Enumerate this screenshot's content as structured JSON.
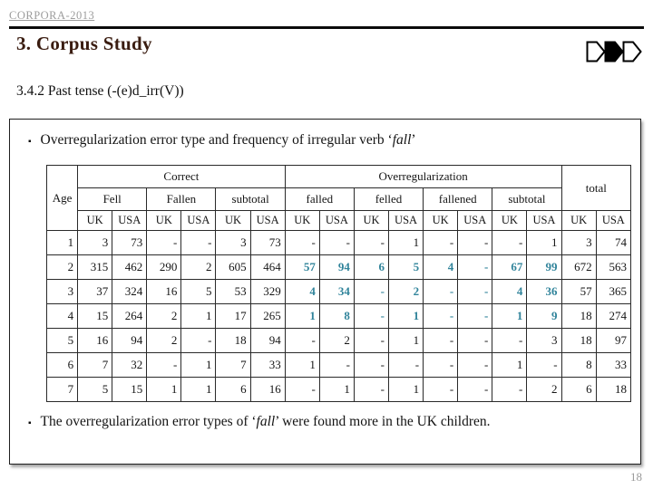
{
  "header": {
    "eyebrow": "CORPORA-2013",
    "title": "3. Corpus Study",
    "subtitle": "3.4.2 Past tense (-(e)d_irr(V))",
    "nav_shapes": [
      {
        "name": "pentagon-outline-icon",
        "fill": "#ffffff"
      },
      {
        "name": "pentagon-filled-icon",
        "fill": "#000000"
      },
      {
        "name": "pentagon-outline-icon",
        "fill": "#ffffff"
      }
    ]
  },
  "bullet_glyph": "▪",
  "bullets": [
    {
      "before": "Overregularization error type and frequency of irregular verb ‘",
      "italic": "fall",
      "after": "’"
    },
    {
      "before": "The overregularization error types of ‘",
      "italic": "fall",
      "after": "’ were found more in the UK children."
    }
  ],
  "table": {
    "age_label": "Age",
    "group_headers": [
      {
        "label": "Correct",
        "span": 6
      },
      {
        "label": "Overregularization",
        "span": 8
      }
    ],
    "total_label": "total",
    "sub_headers": [
      {
        "label": "Fell",
        "gray": false
      },
      {
        "label": "Fallen",
        "gray": false
      },
      {
        "label": "subtotal",
        "gray": true
      },
      {
        "label": "falled",
        "gray": false
      },
      {
        "label": "felled",
        "gray": false
      },
      {
        "label": "fallened",
        "gray": false
      },
      {
        "label": "subtotal",
        "gray": true
      }
    ],
    "uk_label": "UK",
    "usa_label": "USA",
    "rows": [
      {
        "age": "1",
        "highlight": false,
        "values": [
          "3",
          "73",
          "-",
          "-",
          "3",
          "73",
          "-",
          "-",
          "-",
          "1",
          "-",
          "-",
          "-",
          "1",
          "3",
          "74"
        ]
      },
      {
        "age": "2",
        "highlight": true,
        "values": [
          "315",
          "462",
          "290",
          "2",
          "605",
          "464",
          "57",
          "94",
          "6",
          "5",
          "4",
          "-",
          "67",
          "99",
          "672",
          "563"
        ]
      },
      {
        "age": "3",
        "highlight": true,
        "values": [
          "37",
          "324",
          "16",
          "5",
          "53",
          "329",
          "4",
          "34",
          "-",
          "2",
          "-",
          "-",
          "4",
          "36",
          "57",
          "365"
        ]
      },
      {
        "age": "4",
        "highlight": true,
        "values": [
          "15",
          "264",
          "2",
          "1",
          "17",
          "265",
          "1",
          "8",
          "-",
          "1",
          "-",
          "-",
          "1",
          "9",
          "18",
          "274"
        ]
      },
      {
        "age": "5",
        "highlight": false,
        "values": [
          "16",
          "94",
          "2",
          "-",
          "18",
          "94",
          "-",
          "2",
          "-",
          "1",
          "-",
          "-",
          "-",
          "3",
          "18",
          "97"
        ]
      },
      {
        "age": "6",
        "highlight": false,
        "values": [
          "7",
          "32",
          "-",
          "1",
          "7",
          "33",
          "1",
          "-",
          "-",
          "-",
          "-",
          "-",
          "1",
          "-",
          "8",
          "33"
        ]
      },
      {
        "age": "7",
        "highlight": false,
        "values": [
          "5",
          "15",
          "1",
          "1",
          "6",
          "16",
          "-",
          "1",
          "-",
          "1",
          "-",
          "-",
          "-",
          "2",
          "6",
          "18"
        ]
      }
    ]
  },
  "footer": {
    "page_number": "18"
  },
  "colors": {
    "accent_number": "#31849B",
    "subtotal_bg": "#EFEFEF",
    "title": "#3A1C10"
  }
}
